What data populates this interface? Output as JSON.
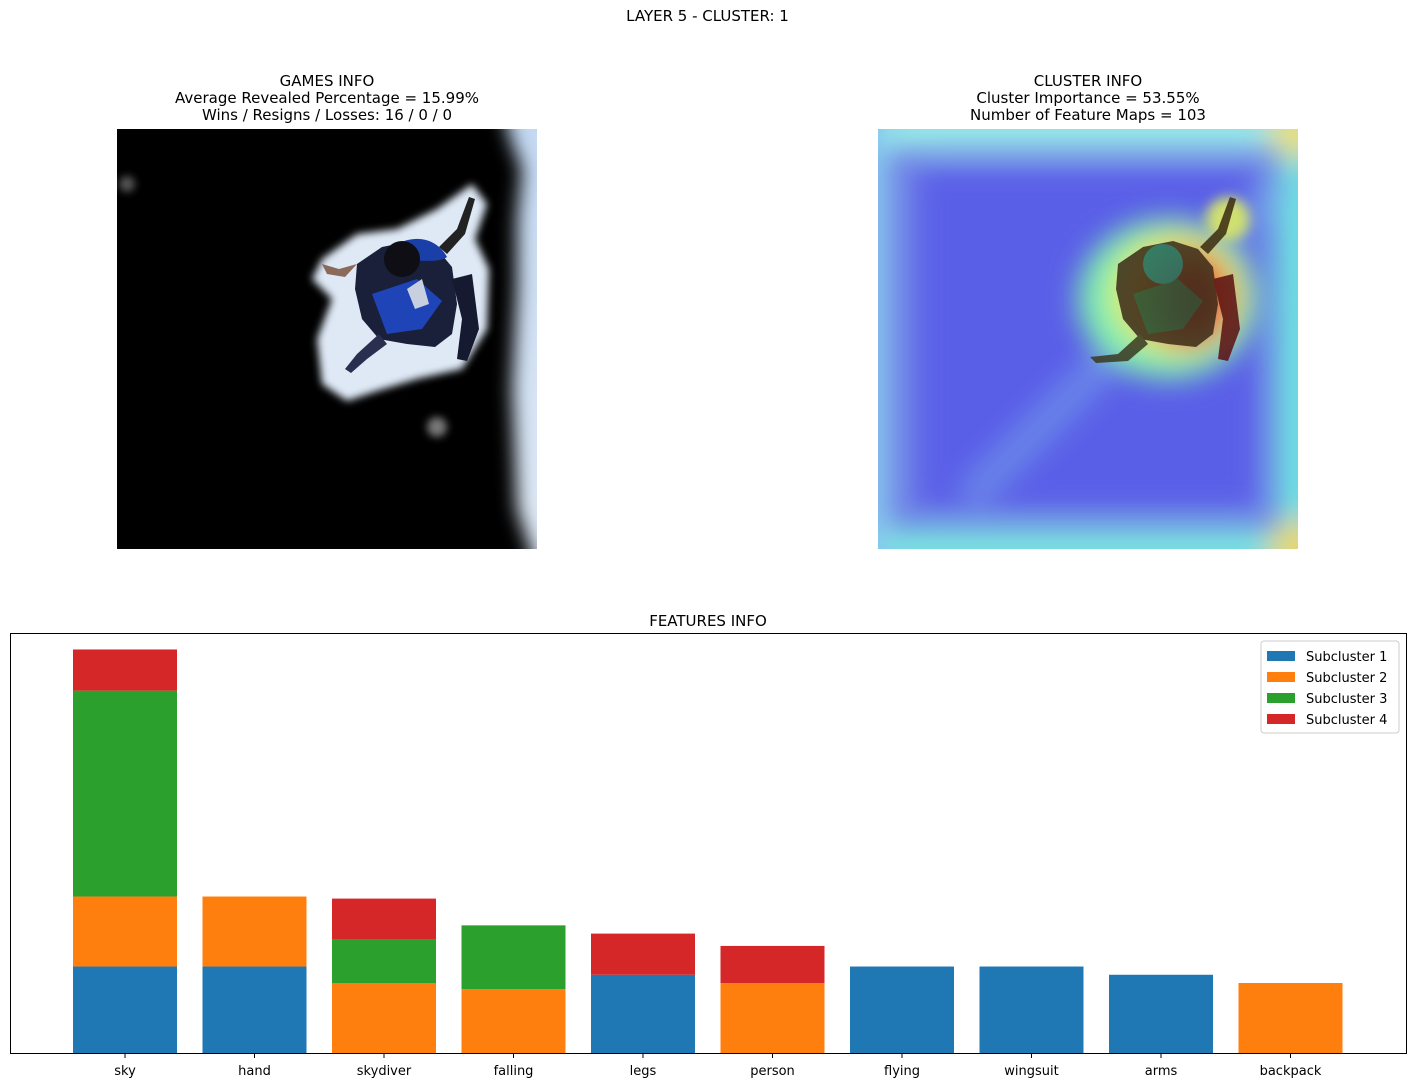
{
  "suptitle": "LAYER 5 - CLUSTER: 1",
  "games_info": {
    "title": "GAMES INFO",
    "line1": "Average Revealed Percentage = 15.99%",
    "line2": "Wins / Resigns / Losses: 16 / 0 / 0"
  },
  "cluster_info": {
    "title": "CLUSTER INFO",
    "line1": "Cluster Importance = 53.55%",
    "line2": "Number of Feature Maps = 103"
  },
  "features_title": "FEATURES INFO",
  "chart_data": {
    "type": "bar",
    "stacked": true,
    "title": "FEATURES INFO",
    "xlabel": "",
    "ylabel": "",
    "y_ticks_shown": false,
    "ylim": [
      0,
      10.2
    ],
    "legend_position": "top-right",
    "categories": [
      "sky",
      "hand",
      "skydiver",
      "falling",
      "legs",
      "person",
      "flying",
      "wingsuit",
      "arms",
      "backpack"
    ],
    "series": [
      {
        "name": "Subcluster 1",
        "color": "#1f77b4",
        "values": [
          2.1,
          2.1,
          0,
          0,
          1.9,
          0,
          2.1,
          2.1,
          1.9,
          0
        ]
      },
      {
        "name": "Subcluster 2",
        "color": "#ff7f0e",
        "values": [
          1.7,
          1.7,
          1.7,
          1.55,
          0,
          1.7,
          0,
          0,
          0,
          1.7
        ]
      },
      {
        "name": "Subcluster 3",
        "color": "#2ca02c",
        "values": [
          5.0,
          0,
          1.05,
          1.55,
          0,
          0,
          0,
          0,
          0,
          0
        ]
      },
      {
        "name": "Subcluster 4",
        "color": "#d62728",
        "values": [
          1.0,
          0,
          1.0,
          0,
          1.0,
          0.9,
          0,
          0,
          0,
          0
        ]
      }
    ]
  }
}
